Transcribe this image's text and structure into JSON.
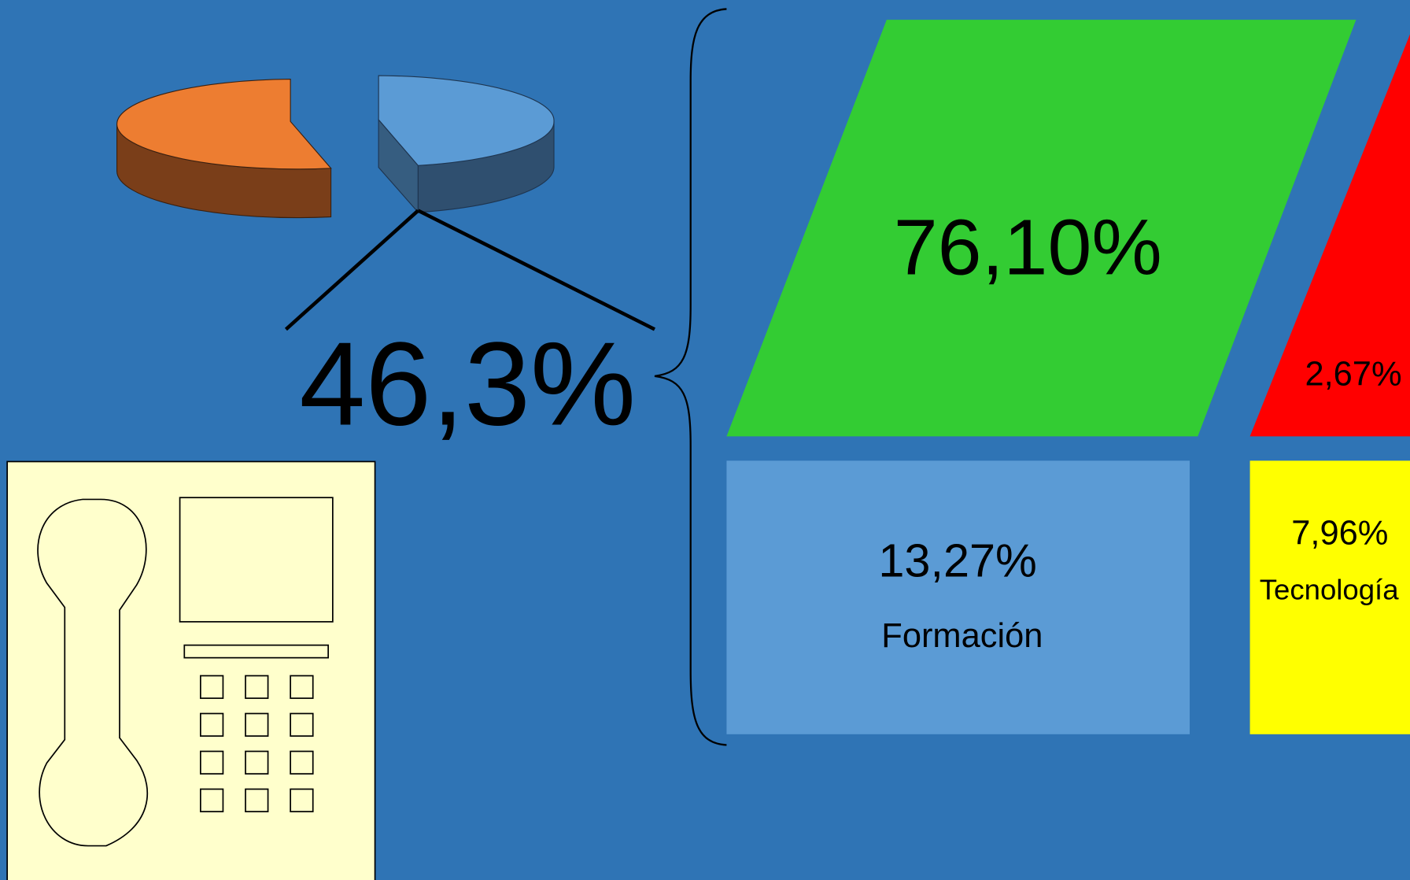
{
  "pie_label": "46,3%",
  "boxes": [
    {
      "value": "76,10%"
    },
    {
      "value": "2,67%"
    },
    {
      "value": "13,27%",
      "label": "Formación"
    },
    {
      "value": "7,96%",
      "label": "Tecnología"
    }
  ]
}
